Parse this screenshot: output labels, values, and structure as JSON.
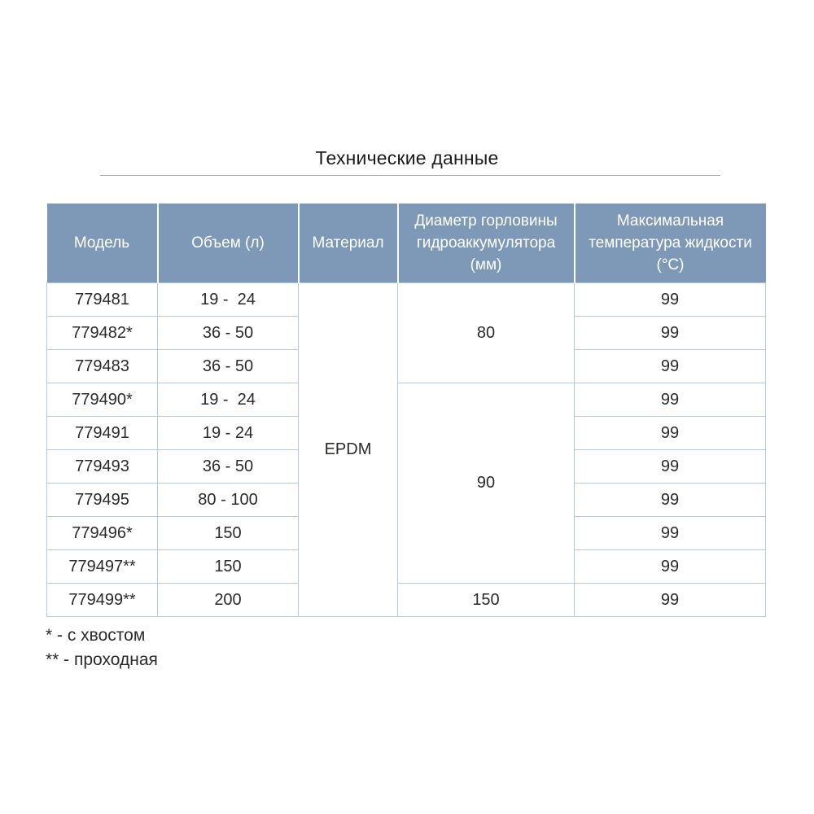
{
  "title": "Технические данные",
  "table": {
    "headers": {
      "model": "Модель",
      "volume": "Объем (л)",
      "material": "Материал",
      "diameter": "Диаметр горловины\nгидроаккумулятора\n(мм)",
      "temperature": "Максимальная\nтемпература жидкости\n(°C)"
    },
    "material_value": "EPDM",
    "diameters": [
      {
        "value": "80",
        "rowspan": 3
      },
      {
        "value": "90",
        "rowspan": 6
      },
      {
        "value": "150",
        "rowspan": 1
      }
    ],
    "rows": [
      {
        "model": "779481",
        "volume": "19 -  24",
        "temp": "99"
      },
      {
        "model": "779482*",
        "volume": "36 - 50",
        "temp": "99"
      },
      {
        "model": "779483",
        "volume": "36 - 50",
        "temp": "99"
      },
      {
        "model": "779490*",
        "volume": "19 -  24",
        "temp": "99"
      },
      {
        "model": "779491",
        "volume": "19 - 24",
        "temp": "99"
      },
      {
        "model": "779493",
        "volume": "36 - 50",
        "temp": "99"
      },
      {
        "model": "779495",
        "volume": "80 - 100",
        "temp": "99"
      },
      {
        "model": "779496*",
        "volume": "150",
        "temp": "99"
      },
      {
        "model": "779497**",
        "volume": "150",
        "temp": "99"
      },
      {
        "model": "779499**",
        "volume": "200",
        "temp": "99"
      }
    ]
  },
  "footnotes": {
    "one": "* - с хвостом",
    "two": "** - проходная"
  },
  "colors": {
    "header_bg": "#7e99b7",
    "header_text": "#ffffff",
    "body_text": "#2b2a29",
    "border": "#b5cbd9",
    "title_rule": "#a8a8a8"
  }
}
